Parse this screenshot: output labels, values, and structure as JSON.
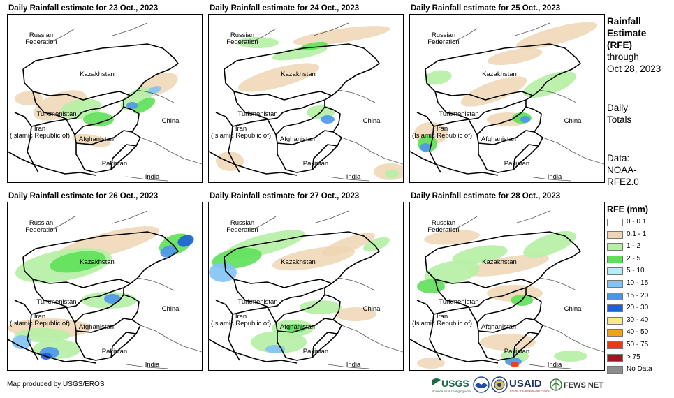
{
  "panels": [
    {
      "title": "Daily Rainfall estimate for 23 Oct., 2023"
    },
    {
      "title": "Daily Rainfall estimate for 24 Oct., 2023"
    },
    {
      "title": "Daily Rainfall estimate for 25 Oct., 2023"
    },
    {
      "title": "Daily Rainfall estimate for 26 Oct., 2023"
    },
    {
      "title": "Daily Rainfall estimate for 27 Oct., 2023"
    },
    {
      "title": "Daily Rainfall estimate for 28 Oct., 2023"
    }
  ],
  "map_labels": {
    "russia_line1": "Russian",
    "russia_line2": "Federation",
    "kazakhstan": "Kazakhstan",
    "turkmenistan": "Turkmenistan",
    "iran_line1": "Iran",
    "iran_line2": "(Islamic Republic of)",
    "afghanistan": "Afghanistan",
    "pakistan": "Pakistan",
    "china": "China",
    "india": "India"
  },
  "sidebar": {
    "title_line1": "Rainfall",
    "title_line2": "Estimate",
    "title_line3": "(RFE)",
    "through_line1": "through",
    "through_line2": "Oct 28, 2023",
    "totals_line1": "Daily",
    "totals_line2": "Totals",
    "data_line1": "Data:",
    "data_line2": "NOAA-",
    "data_line3": "RFE2.0"
  },
  "legend": {
    "title": "RFE (mm)",
    "items": [
      {
        "label": "0 - 0.1",
        "color": "#ffffff"
      },
      {
        "label": "0.1 - 1",
        "color": "#eed6b4"
      },
      {
        "label": "1 - 2",
        "color": "#b5f0a4"
      },
      {
        "label": "2 - 5",
        "color": "#5ee05a"
      },
      {
        "label": "5 - 10",
        "color": "#b4ecf8"
      },
      {
        "label": "10 - 15",
        "color": "#82c2f4"
      },
      {
        "label": "15 - 20",
        "color": "#4a96ee"
      },
      {
        "label": "20 - 30",
        "color": "#1c5edc"
      },
      {
        "label": "30 - 40",
        "color": "#fae88a"
      },
      {
        "label": "40 - 50",
        "color": "#f6a01a"
      },
      {
        "label": "50 - 75",
        "color": "#ee3a0e"
      },
      {
        "label": "> 75",
        "color": "#a0141e"
      },
      {
        "label": "No Data",
        "color": "#8c8c8c"
      }
    ]
  },
  "footer": {
    "credit": "Map produced by USGS/EROS",
    "logos": [
      "USGS",
      "NOAA",
      "DOS",
      "USAID",
      "FEWS NET"
    ]
  }
}
